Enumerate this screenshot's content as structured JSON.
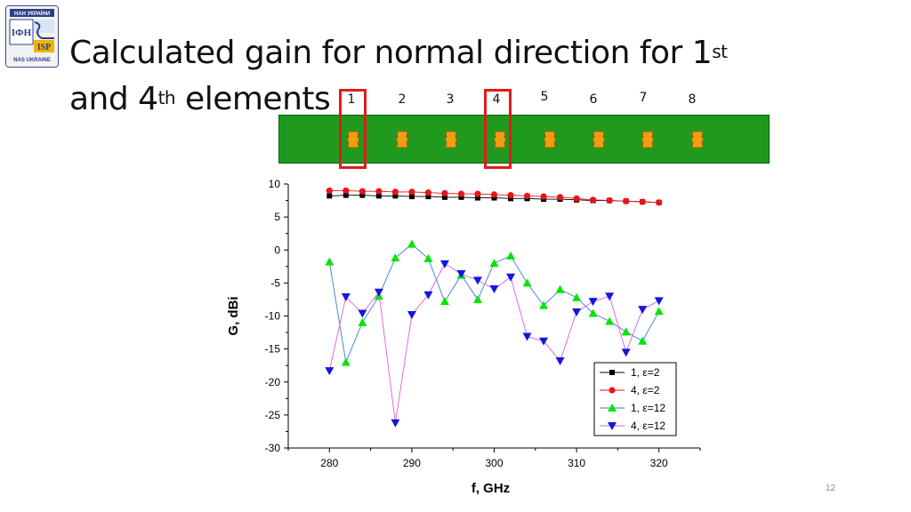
{
  "slide": {
    "title_part1": "Calculated gain for normal direction for 1",
    "title_sup1": "st",
    "title_part2": "and 4",
    "title_sup2": "th",
    "title_part3": " elements",
    "page_number": "12"
  },
  "logo": {
    "top_text": "НАН УКРАЇНИ",
    "left_text": "ІФН",
    "right_text": "ISP",
    "bottom_text": "NAS UKRAINE"
  },
  "colors": {
    "board": "#1f9a1f",
    "element": "#f39c12",
    "highlight": "#e01b1b"
  },
  "element_labels": [
    "1",
    "2",
    "3",
    "4",
    "5",
    "6",
    "7",
    "8"
  ],
  "chart_data": {
    "type": "line",
    "xlabel": "f, GHz",
    "ylabel": "G, dBi",
    "xlim": [
      275,
      325
    ],
    "ylim": [
      -30,
      10
    ],
    "xticks": [
      280,
      290,
      300,
      310,
      320
    ],
    "yticks": [
      10,
      5,
      0,
      -5,
      -10,
      -15,
      -20,
      -25,
      -30
    ],
    "grid": false,
    "legend_position": "bottom-right",
    "x": [
      280,
      282,
      284,
      286,
      288,
      290,
      292,
      294,
      296,
      298,
      300,
      302,
      304,
      306,
      308,
      310,
      312,
      314,
      316,
      318,
      320
    ],
    "series": [
      {
        "name": "1, ε=2",
        "color": "#000000",
        "marker": "square",
        "values": [
          8.2,
          8.3,
          8.3,
          8.2,
          8.2,
          8.1,
          8.1,
          8.0,
          8.0,
          7.9,
          7.9,
          7.8,
          7.8,
          7.7,
          7.7,
          7.6,
          7.5,
          7.5,
          7.4,
          7.3,
          7.2
        ]
      },
      {
        "name": "4, ε=2",
        "color": "#e8141b",
        "marker": "circle",
        "values": [
          9.0,
          9.0,
          8.9,
          8.9,
          8.8,
          8.8,
          8.7,
          8.6,
          8.5,
          8.5,
          8.4,
          8.3,
          8.2,
          8.1,
          8.0,
          7.8,
          7.6,
          7.5,
          7.4,
          7.3,
          7.2
        ]
      },
      {
        "name": "1, ε=12",
        "color": "#00e600",
        "line_color": "#3b78d8",
        "marker": "triangle-up",
        "values": [
          -1.8,
          -17.0,
          -11.0,
          -7.0,
          -1.2,
          0.9,
          -1.3,
          -7.8,
          -3.8,
          -7.5,
          -2.0,
          -0.9,
          -5.0,
          -8.4,
          -6.0,
          -7.2,
          -9.6,
          -10.8,
          -12.4,
          -13.8,
          -9.3
        ]
      },
      {
        "name": "4, ε=12",
        "color": "#1515e0",
        "line_color": "#e05ce0",
        "marker": "triangle-down",
        "values": [
          -18.3,
          -7.1,
          -9.6,
          -6.4,
          -26.2,
          -9.8,
          -6.8,
          -2.1,
          -3.6,
          -4.6,
          -5.9,
          -4.1,
          -13.1,
          -13.8,
          -16.8,
          -9.4,
          -7.8,
          -7.0,
          -15.5,
          -9.0,
          -7.7
        ]
      }
    ]
  }
}
